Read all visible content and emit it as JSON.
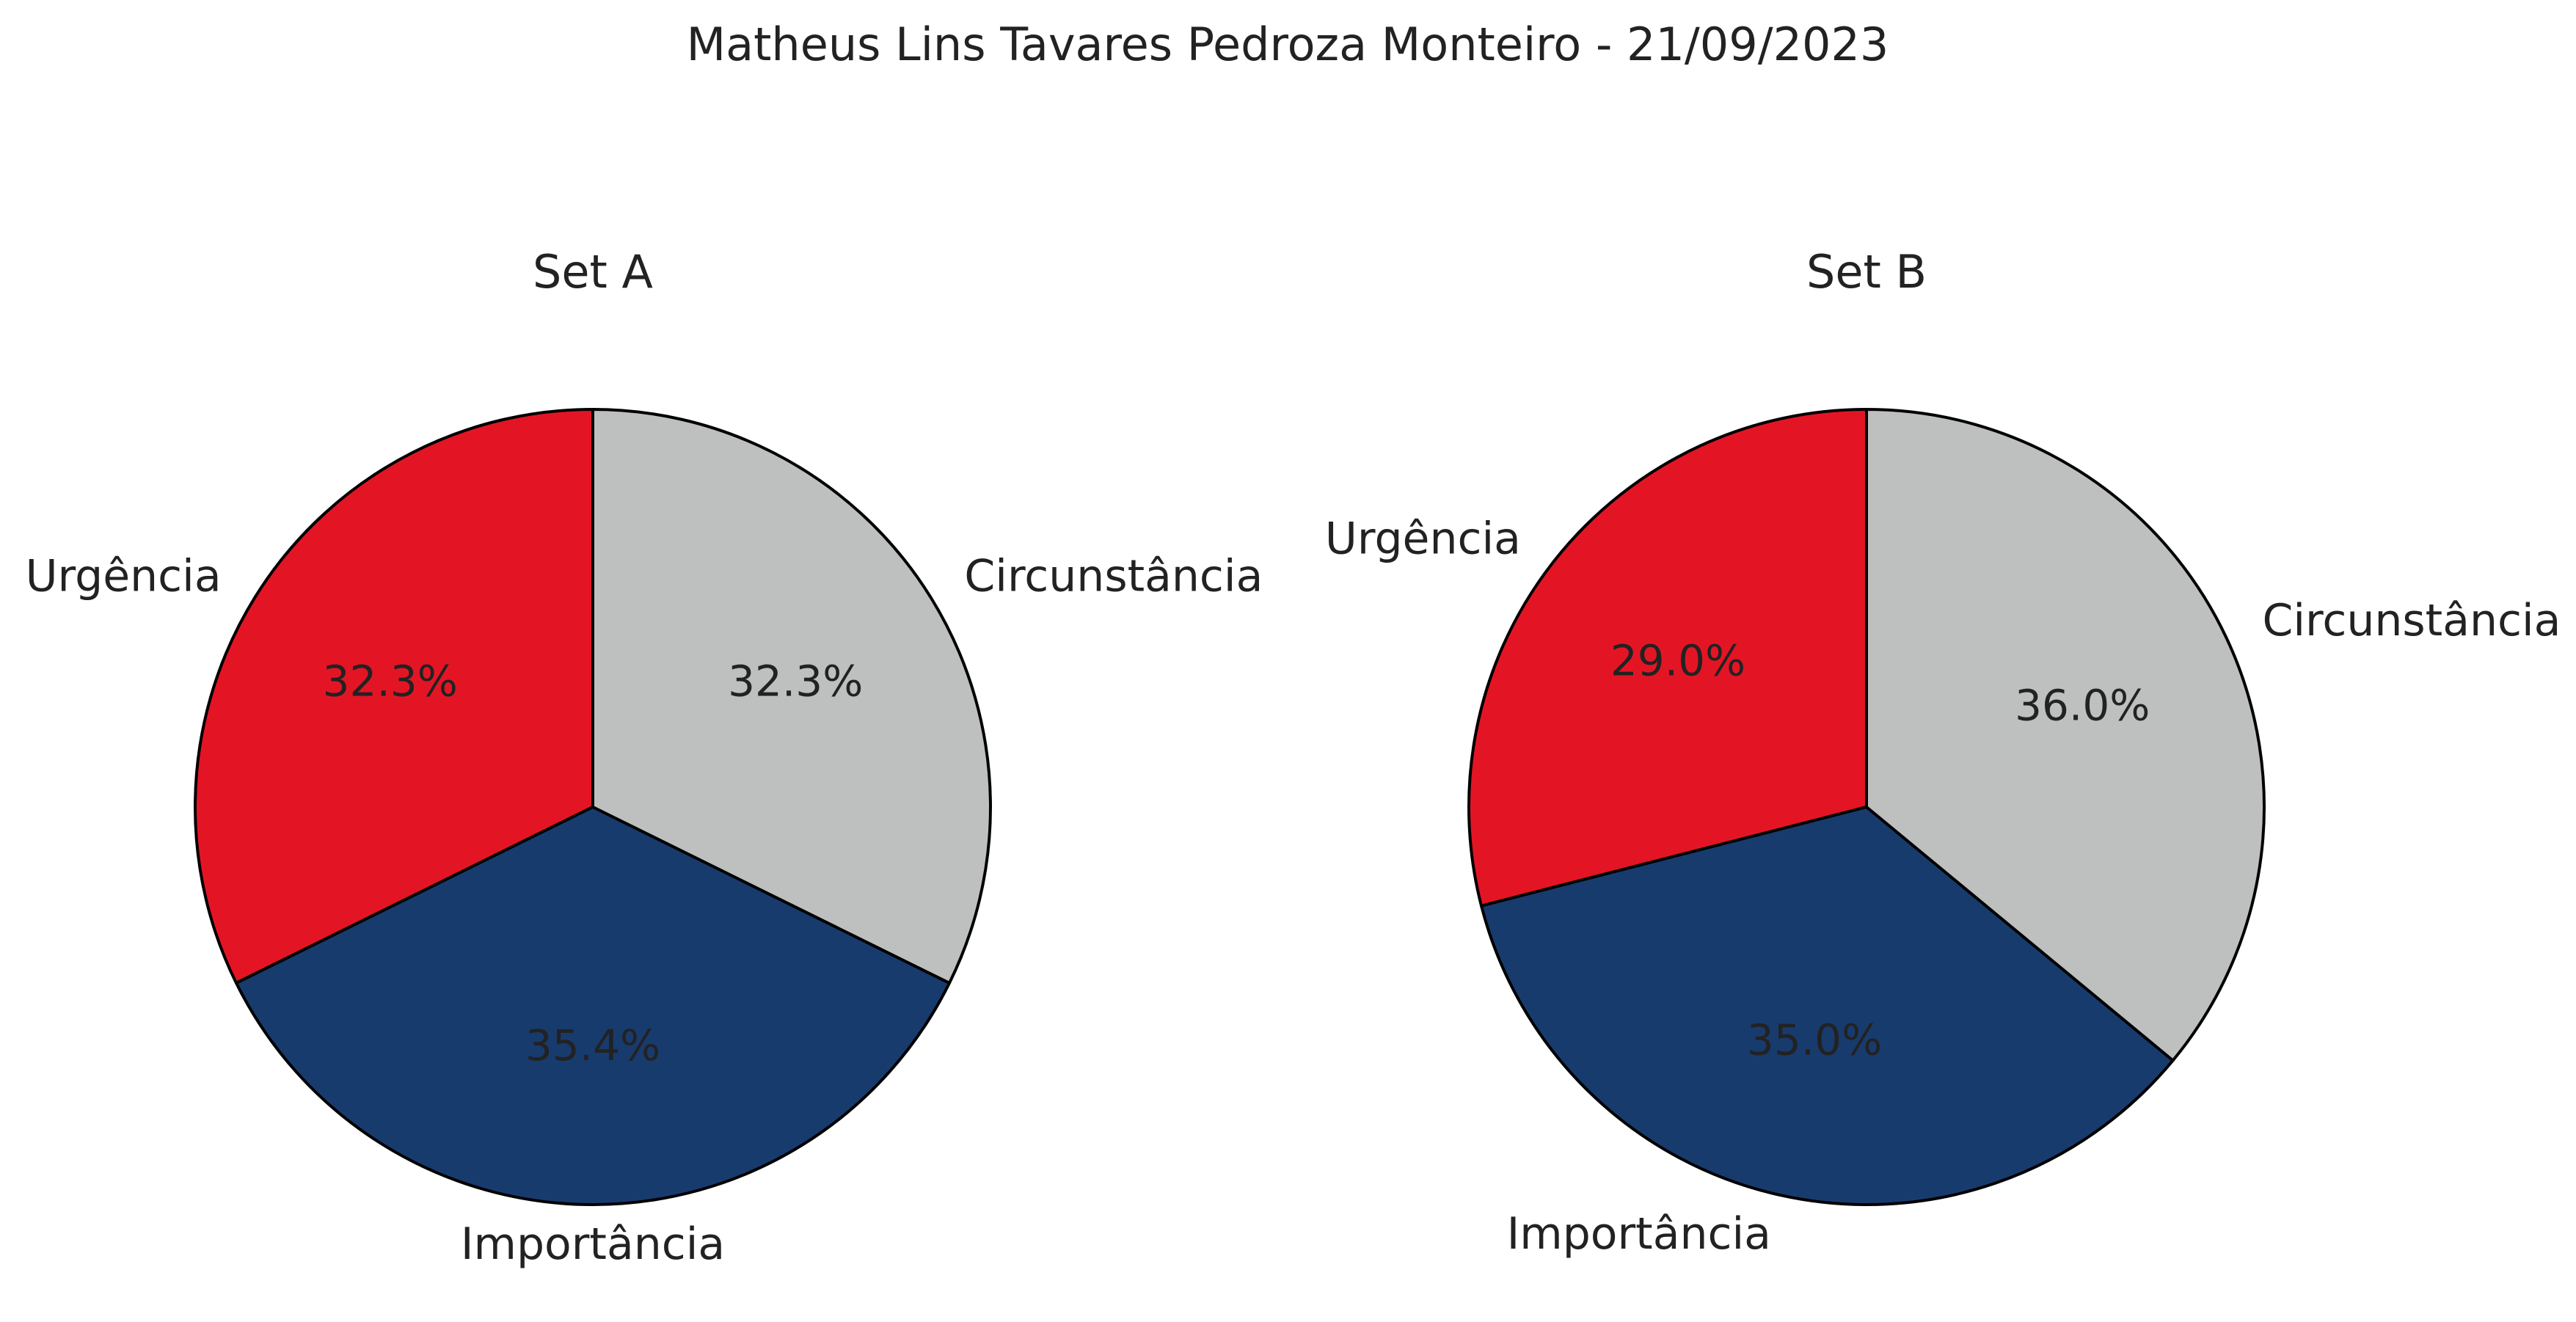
{
  "figure_title": "Matheus Lins Tavares Pedroza Monteiro - 21/09/2023",
  "colors": {
    "Urgência": "#e31525",
    "Importância": "#183b6e",
    "Circunstância": "#bec0bf",
    "edge": "#000000",
    "text": "#222222"
  },
  "chart_data": [
    {
      "type": "pie",
      "title": "Set A",
      "labels": [
        "Urgência",
        "Importância",
        "Circunstância"
      ],
      "values": [
        32.3,
        35.4,
        32.3
      ],
      "value_labels": [
        "32.3%",
        "35.4%",
        "32.3%"
      ],
      "start_angle_deg": 90,
      "direction": "counterclockwise"
    },
    {
      "type": "pie",
      "title": "Set B",
      "labels": [
        "Urgência",
        "Importância",
        "Circunstância"
      ],
      "values": [
        29.0,
        35.0,
        36.0
      ],
      "value_labels": [
        "29.0%",
        "35.0%",
        "36.0%"
      ],
      "start_angle_deg": 90,
      "direction": "counterclockwise"
    }
  ]
}
